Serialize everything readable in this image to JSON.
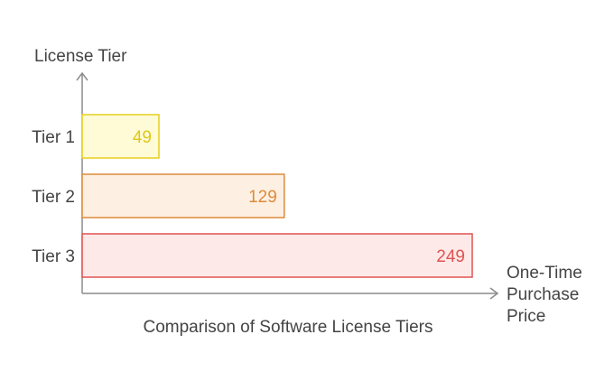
{
  "chart_data": {
    "type": "bar",
    "orientation": "horizontal",
    "title": "Comparison of Software License Tiers",
    "ylabel": "License Tier",
    "xlabel": [
      "One-Time",
      "Purchase",
      "Price"
    ],
    "categories": [
      "Tier 1",
      "Tier 2",
      "Tier 3"
    ],
    "values": [
      49,
      129,
      249
    ],
    "xlim": [
      0,
      249
    ],
    "grid": false,
    "colors": [
      {
        "fill": "#fffbd6",
        "stroke": "#e6cf1f",
        "text": "#e0c619"
      },
      {
        "fill": "#fdf0e2",
        "stroke": "#dd8a3a",
        "text": "#dd8a3a"
      },
      {
        "fill": "#fde9e8",
        "stroke": "#e05252",
        "text": "#e05252"
      }
    ],
    "axis_color": "#8c8c8c"
  }
}
